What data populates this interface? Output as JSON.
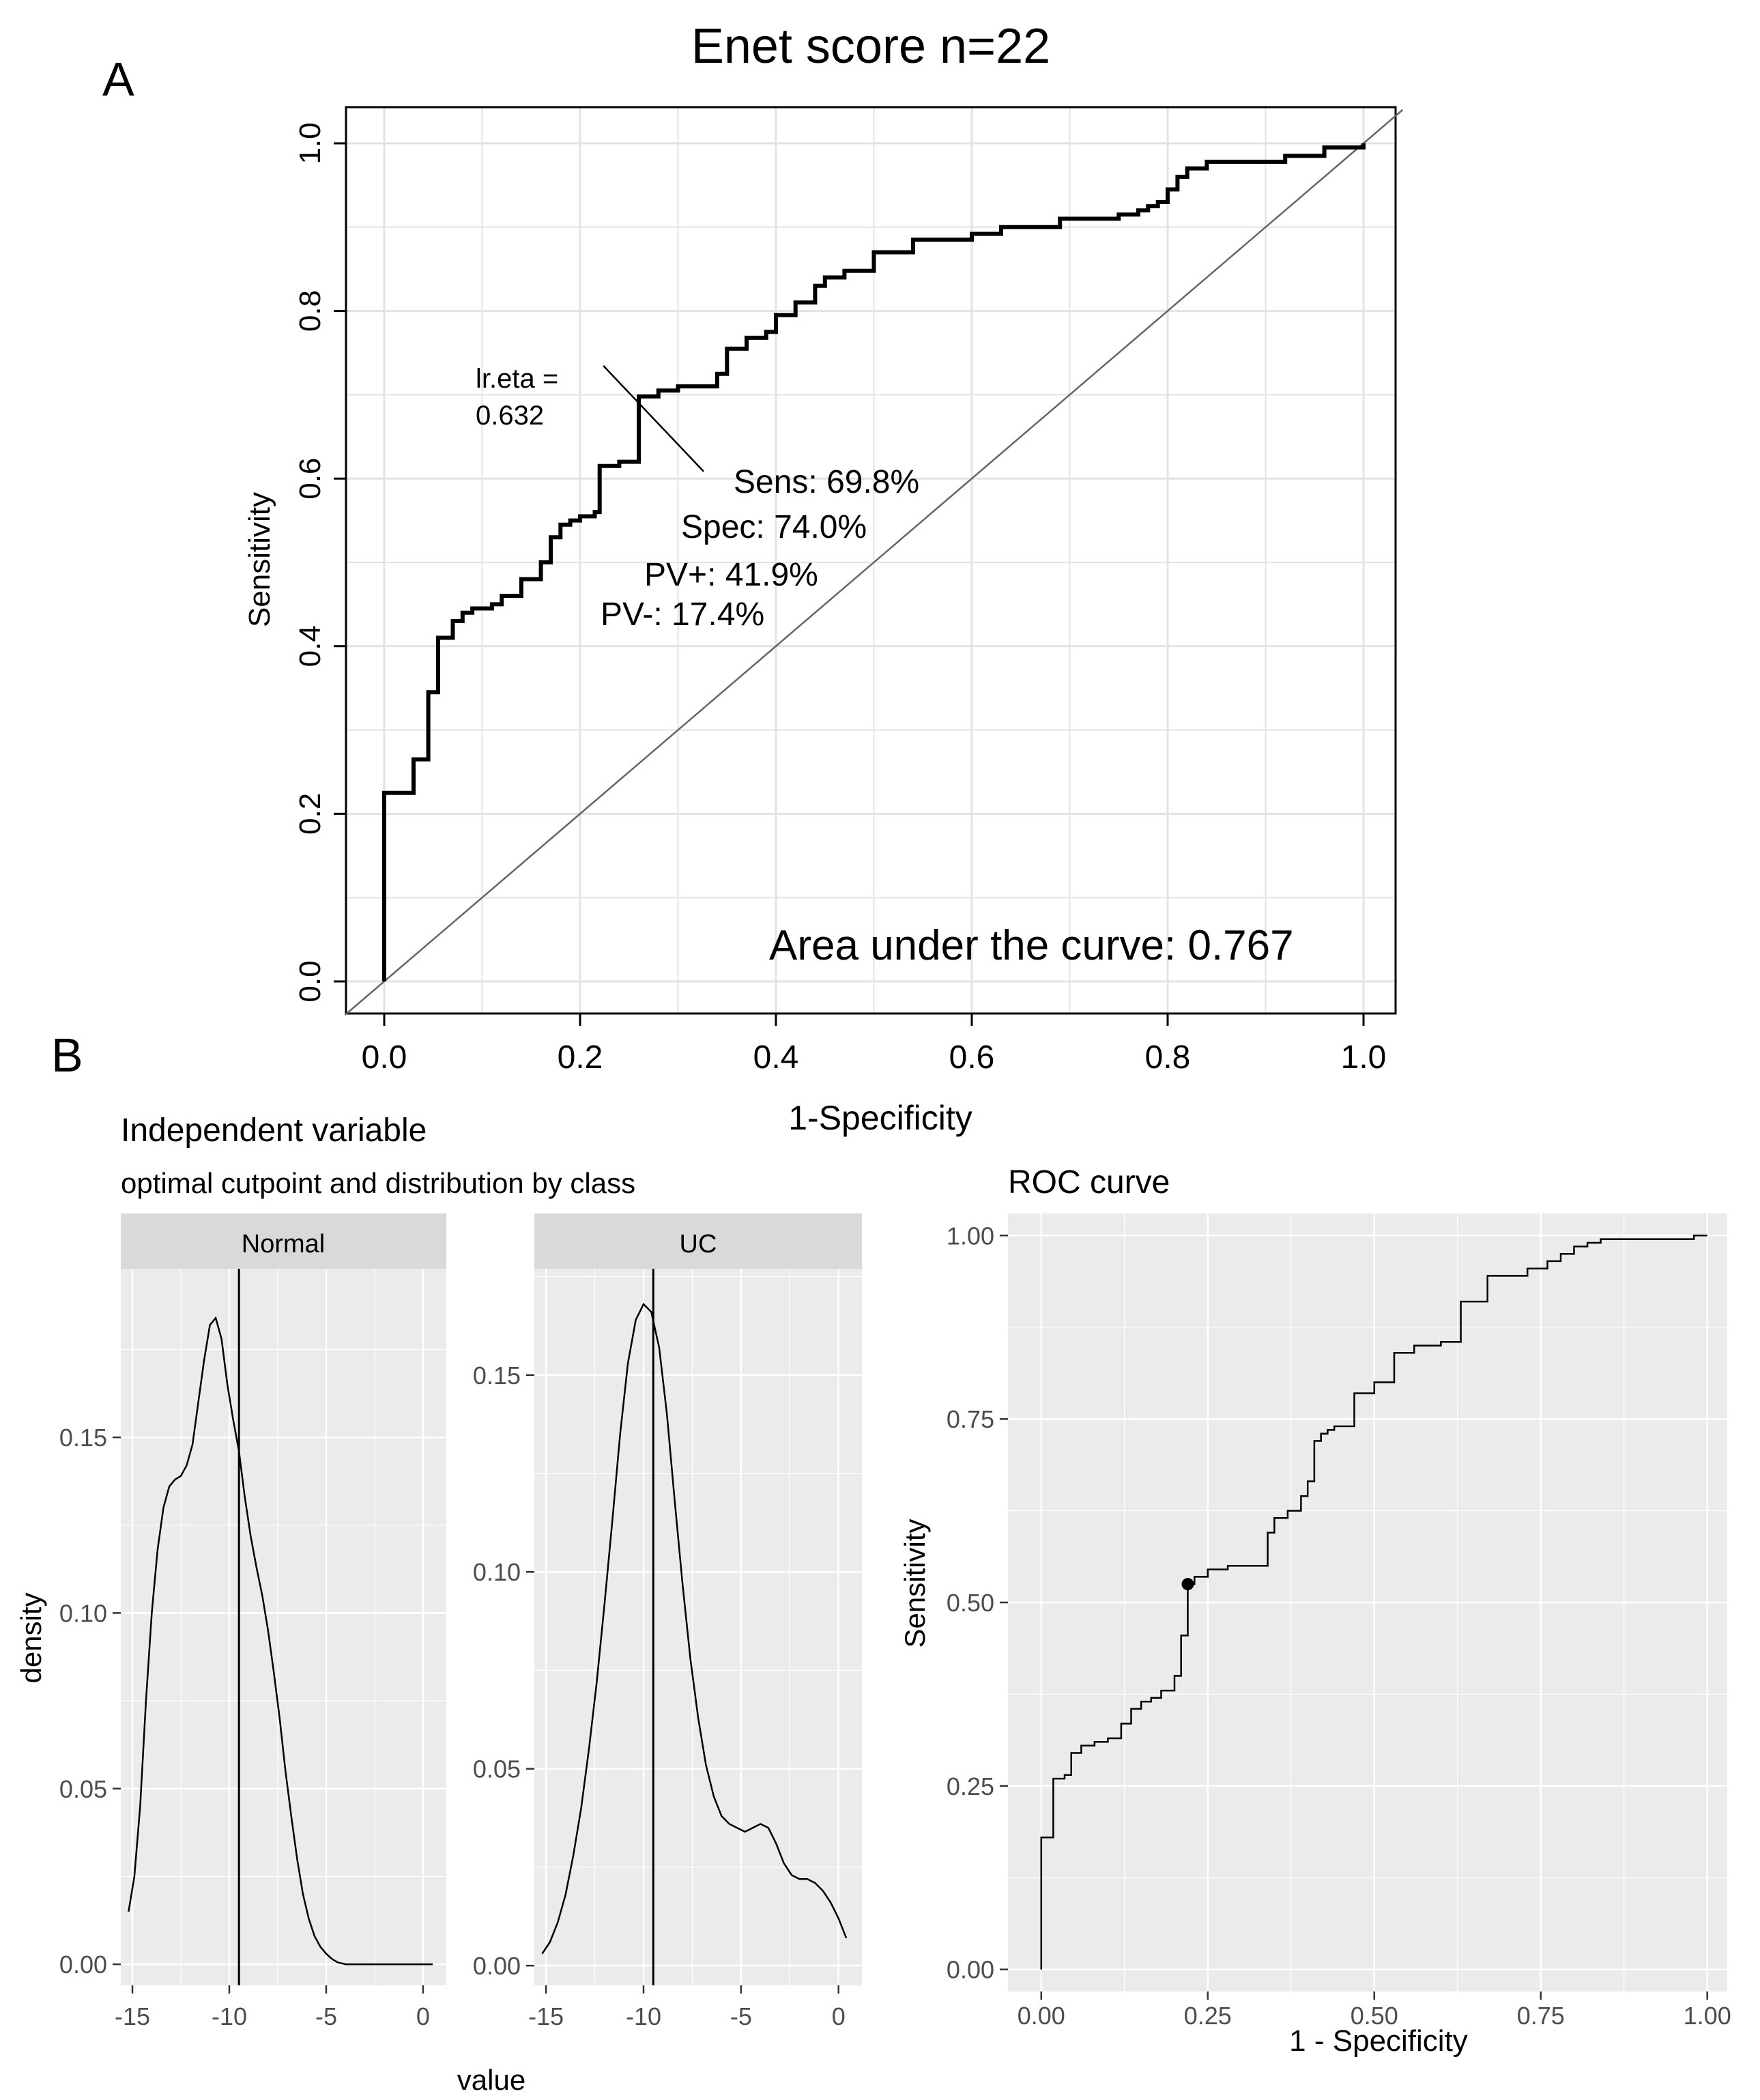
{
  "panel_labels": {
    "a": "A",
    "b": "B"
  },
  "chart_data": [
    {
      "id": "panel-a",
      "type": "line",
      "title": "Enet score n=22",
      "xlabel": "1-Specificity",
      "ylabel": "Sensitivity",
      "xlim": [
        0,
        1
      ],
      "ylim": [
        0,
        1
      ],
      "x_ticks": [
        "0.0",
        "0.2",
        "0.4",
        "0.6",
        "0.8",
        "1.0"
      ],
      "y_ticks": [
        "0.0",
        "0.2",
        "0.4",
        "0.6",
        "0.8",
        "1.0"
      ],
      "grid": true,
      "series": [
        {
          "name": "ROC",
          "x": [
            0,
            0,
            0.03,
            0.03,
            0.045,
            0.045,
            0.055,
            0.055,
            0.07,
            0.07,
            0.08,
            0.08,
            0.09,
            0.09,
            0.11,
            0.11,
            0.12,
            0.12,
            0.14,
            0.14,
            0.16,
            0.16,
            0.17,
            0.17,
            0.18,
            0.18,
            0.19,
            0.19,
            0.2,
            0.2,
            0.215,
            0.215,
            0.22,
            0.22,
            0.24,
            0.24,
            0.25,
            0.25,
            0.26,
            0.26,
            0.28,
            0.28,
            0.3,
            0.3,
            0.34,
            0.34,
            0.35,
            0.35,
            0.37,
            0.37,
            0.39,
            0.39,
            0.4,
            0.4,
            0.42,
            0.42,
            0.44,
            0.44,
            0.45,
            0.45,
            0.47,
            0.47,
            0.5,
            0.5,
            0.54,
            0.54,
            0.6,
            0.6,
            0.63,
            0.63,
            0.69,
            0.69,
            0.75,
            0.75,
            0.77,
            0.77,
            0.78,
            0.78,
            0.79,
            0.79,
            0.8,
            0.8,
            0.81,
            0.81,
            0.82,
            0.82,
            0.84,
            0.84,
            0.92,
            0.92,
            0.96,
            0.96,
            1.0,
            1.0
          ],
          "y": [
            0,
            0.225,
            0.225,
            0.265,
            0.265,
            0.345,
            0.345,
            0.41,
            0.41,
            0.43,
            0.43,
            0.44,
            0.44,
            0.445,
            0.445,
            0.45,
            0.45,
            0.46,
            0.46,
            0.48,
            0.48,
            0.5,
            0.5,
            0.53,
            0.53,
            0.545,
            0.545,
            0.55,
            0.55,
            0.555,
            0.555,
            0.56,
            0.56,
            0.615,
            0.615,
            0.62,
            0.62,
            0.62,
            0.62,
            0.698,
            0.698,
            0.705,
            0.705,
            0.71,
            0.71,
            0.725,
            0.725,
            0.755,
            0.755,
            0.768,
            0.768,
            0.775,
            0.775,
            0.795,
            0.795,
            0.81,
            0.81,
            0.83,
            0.83,
            0.84,
            0.84,
            0.848,
            0.848,
            0.87,
            0.87,
            0.885,
            0.885,
            0.892,
            0.892,
            0.9,
            0.9,
            0.91,
            0.91,
            0.915,
            0.915,
            0.92,
            0.92,
            0.925,
            0.925,
            0.93,
            0.93,
            0.945,
            0.945,
            0.96,
            0.96,
            0.97,
            0.97,
            0.978,
            0.978,
            0.985,
            0.985,
            0.995,
            0.995,
            1.0
          ]
        },
        {
          "name": "reference",
          "x": [
            -0.04,
            1.04
          ],
          "y": [
            -0.04,
            1.04
          ]
        }
      ],
      "cutpoint": {
        "x": 0.26,
        "y": 0.698,
        "label_line1": "lr.eta =",
        "label_line2": "0.632"
      },
      "annotations": {
        "sens": "Sens: 69.8%",
        "spec": "Spec: 74.0%",
        "pvpos": "PV+: 41.9%",
        "pvneg": "PV-: 17.4%",
        "auc": "Area under the curve: 0.767"
      }
    },
    {
      "id": "panel-b-density",
      "type": "area",
      "title": "Independent variable",
      "subtitle": "optimal cutpoint and distribution by class",
      "xlabel": "value",
      "ylabel": "density",
      "cutpoint_value": -9.5,
      "facets": [
        {
          "strip": "Normal",
          "xlim": [
            -15.6,
            1.2
          ],
          "ylim": [
            -0.006,
            0.198
          ],
          "x_ticks": [
            -15,
            -10,
            -5,
            0
          ],
          "x_tick_labels": [
            "-15",
            "-10",
            "-5",
            "0"
          ],
          "y_ticks": [
            0,
            0.05,
            0.1,
            0.15
          ],
          "y_tick_labels": [
            "0.00",
            "0.05",
            "0.10",
            "0.15"
          ],
          "x": [
            -15.2,
            -14.9,
            -14.6,
            -14.3,
            -14,
            -13.7,
            -13.4,
            -13.1,
            -12.8,
            -12.5,
            -12.2,
            -11.9,
            -11.6,
            -11.3,
            -11,
            -10.7,
            -10.4,
            -10.1,
            -9.8,
            -9.5,
            -9.2,
            -8.9,
            -8.6,
            -8.3,
            -8,
            -7.7,
            -7.4,
            -7.1,
            -6.8,
            -6.5,
            -6.2,
            -5.9,
            -5.6,
            -5.3,
            -5,
            -4.7,
            -4.4,
            -4,
            -3,
            -2,
            -1,
            0.5
          ],
          "y": [
            0.015,
            0.025,
            0.045,
            0.075,
            0.1,
            0.118,
            0.13,
            0.136,
            0.138,
            0.139,
            0.142,
            0.148,
            0.16,
            0.172,
            0.182,
            0.184,
            0.178,
            0.165,
            0.155,
            0.146,
            0.133,
            0.122,
            0.113,
            0.105,
            0.095,
            0.083,
            0.07,
            0.055,
            0.042,
            0.03,
            0.02,
            0.013,
            0.008,
            0.005,
            0.003,
            0.0015,
            0.0005,
            0,
            0,
            0,
            0,
            0
          ]
        },
        {
          "strip": "UC",
          "xlim": [
            -15.6,
            1.2
          ],
          "ylim": [
            -0.005,
            0.177
          ],
          "x_ticks": [
            -15,
            -10,
            -5,
            0
          ],
          "x_tick_labels": [
            "-15",
            "-10",
            "-5",
            "0"
          ],
          "y_ticks": [
            0,
            0.05,
            0.1,
            0.15
          ],
          "y_tick_labels": [
            "0.00",
            "0.05",
            "0.10",
            "0.15"
          ],
          "x": [
            -15.2,
            -14.8,
            -14.4,
            -14,
            -13.6,
            -13.2,
            -12.8,
            -12.4,
            -12,
            -11.6,
            -11.2,
            -10.8,
            -10.4,
            -10,
            -9.6,
            -9.2,
            -8.8,
            -8.4,
            -8,
            -7.6,
            -7.2,
            -6.8,
            -6.4,
            -6,
            -5.6,
            -5.2,
            -4.8,
            -4.4,
            -4,
            -3.6,
            -3.2,
            -2.8,
            -2.4,
            -2,
            -1.6,
            -1.2,
            -0.8,
            -0.4,
            0,
            0.4
          ],
          "y": [
            0.003,
            0.006,
            0.011,
            0.018,
            0.028,
            0.04,
            0.055,
            0.072,
            0.092,
            0.113,
            0.135,
            0.153,
            0.164,
            0.168,
            0.166,
            0.157,
            0.14,
            0.118,
            0.097,
            0.078,
            0.063,
            0.051,
            0.043,
            0.038,
            0.036,
            0.035,
            0.034,
            0.035,
            0.036,
            0.035,
            0.031,
            0.026,
            0.023,
            0.022,
            0.022,
            0.021,
            0.019,
            0.016,
            0.012,
            0.007
          ]
        }
      ]
    },
    {
      "id": "panel-b-roc",
      "type": "line",
      "title": "ROC curve",
      "xlabel": "1 - Specificity",
      "ylabel": "Sensitivity",
      "xlim": [
        -0.05,
        1.03
      ],
      "ylim": [
        -0.03,
        1.03
      ],
      "x_ticks": [
        0,
        0.25,
        0.5,
        0.75,
        1
      ],
      "x_tick_labels": [
        "0.00",
        "0.25",
        "0.50",
        "0.75",
        "1.00"
      ],
      "y_ticks": [
        0,
        0.25,
        0.5,
        0.75,
        1
      ],
      "y_tick_labels": [
        "0.00",
        "0.25",
        "0.50",
        "0.75",
        "1.00"
      ],
      "series": [
        {
          "name": "ROC",
          "x": [
            0,
            0,
            0.018,
            0.018,
            0.035,
            0.035,
            0.045,
            0.045,
            0.06,
            0.06,
            0.08,
            0.08,
            0.1,
            0.1,
            0.12,
            0.12,
            0.135,
            0.135,
            0.15,
            0.15,
            0.165,
            0.165,
            0.18,
            0.18,
            0.2,
            0.2,
            0.21,
            0.21,
            0.22,
            0.22,
            0.23,
            0.23,
            0.25,
            0.25,
            0.28,
            0.28,
            0.34,
            0.34,
            0.35,
            0.35,
            0.37,
            0.37,
            0.39,
            0.39,
            0.4,
            0.4,
            0.41,
            0.41,
            0.42,
            0.42,
            0.43,
            0.43,
            0.44,
            0.44,
            0.47,
            0.47,
            0.5,
            0.5,
            0.53,
            0.53,
            0.56,
            0.56,
            0.6,
            0.6,
            0.63,
            0.63,
            0.67,
            0.67,
            0.73,
            0.73,
            0.76,
            0.76,
            0.78,
            0.78,
            0.8,
            0.8,
            0.82,
            0.82,
            0.84,
            0.84,
            0.85,
            0.85,
            0.98,
            0.98,
            1.0
          ],
          "y": [
            0,
            0.18,
            0.18,
            0.26,
            0.26,
            0.265,
            0.265,
            0.295,
            0.295,
            0.305,
            0.305,
            0.31,
            0.31,
            0.315,
            0.315,
            0.335,
            0.335,
            0.355,
            0.355,
            0.365,
            0.365,
            0.37,
            0.37,
            0.38,
            0.38,
            0.4,
            0.4,
            0.455,
            0.455,
            0.525,
            0.525,
            0.535,
            0.535,
            0.545,
            0.545,
            0.55,
            0.55,
            0.595,
            0.595,
            0.615,
            0.615,
            0.625,
            0.625,
            0.645,
            0.645,
            0.665,
            0.665,
            0.72,
            0.72,
            0.73,
            0.73,
            0.735,
            0.735,
            0.74,
            0.74,
            0.785,
            0.785,
            0.8,
            0.8,
            0.84,
            0.84,
            0.85,
            0.85,
            0.855,
            0.855,
            0.91,
            0.91,
            0.945,
            0.945,
            0.955,
            0.955,
            0.965,
            0.965,
            0.975,
            0.975,
            0.985,
            0.985,
            0.99,
            0.99,
            0.995,
            0.995,
            0.995,
            0.995,
            1.0,
            1.0
          ]
        }
      ],
      "optimal_point": {
        "x": 0.22,
        "y": 0.525
      }
    }
  ]
}
